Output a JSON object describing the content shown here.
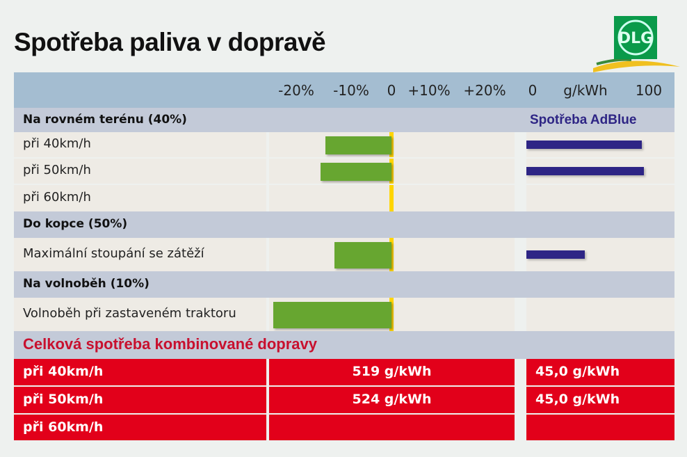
{
  "title": "Spotřeba paliva v dopravě",
  "logo_text": "DLG",
  "chart_data": {
    "type": "bar",
    "axis_fuel": {
      "ticks": [
        "-20%",
        "-10%",
        "0",
        "+10%",
        "+20%"
      ],
      "unit": "%",
      "xlim": [
        -25,
        25
      ]
    },
    "axis_adblue": {
      "ticks": [
        "0",
        "g/kWh",
        "100"
      ],
      "xlim": [
        0,
        100
      ]
    },
    "adblue_title": "Spotřeba AdBlue",
    "sections": [
      {
        "label": "Na rovném terénu (40%)",
        "rows": [
          {
            "label": "při 40km/h",
            "fuel": -14,
            "adblue": 93
          },
          {
            "label": "při 50km/h",
            "fuel": -15,
            "adblue": 95
          },
          {
            "label": "při 60km/h",
            "fuel": null,
            "adblue": null
          }
        ]
      },
      {
        "label": "Do kopce (50%)",
        "rows": [
          {
            "label": "Maximální stoupání se zátěží",
            "fuel": -12,
            "adblue": 47
          }
        ]
      },
      {
        "label": "Na volnoběh (10%)",
        "rows": [
          {
            "label": "Volnoběh při zastaveném traktoru",
            "fuel": -25,
            "adblue": null
          }
        ]
      }
    ],
    "colors": {
      "fuel": "#67a630",
      "adblue": "#2e2585",
      "zero_line": "#ffd500"
    }
  },
  "totals": {
    "title": "Celková spotřeba kombinované dopravy",
    "rows": [
      {
        "label": "při 40km/h",
        "fuel": "519 g/kWh",
        "adblue": "45,0 g/kWh"
      },
      {
        "label": "při 50km/h",
        "fuel": "524 g/kWh",
        "adblue": "45,0 g/kWh"
      },
      {
        "label": "při 60km/h",
        "fuel": "",
        "adblue": ""
      }
    ]
  }
}
